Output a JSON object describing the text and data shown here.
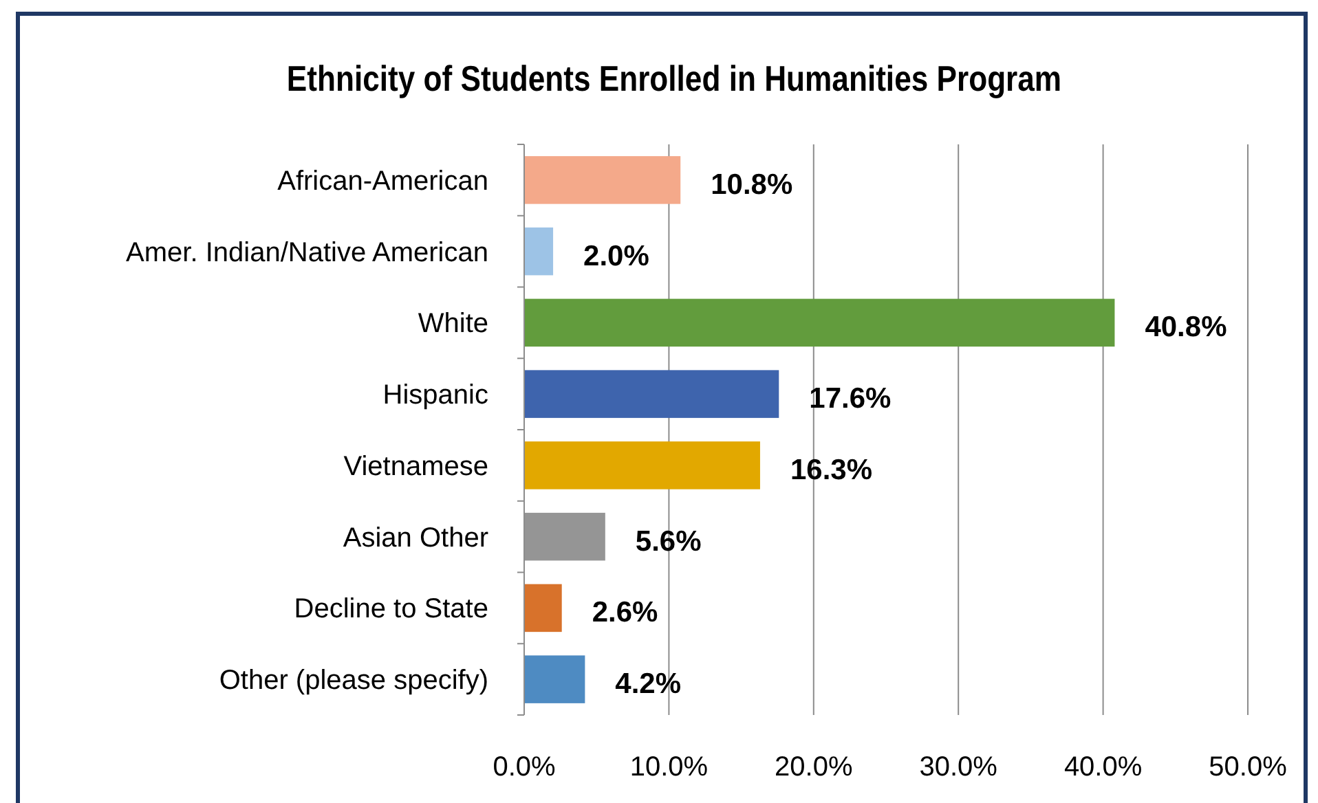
{
  "chart_data": {
    "type": "bar",
    "orientation": "horizontal",
    "title": "Ethnicity of Students Enrolled in Humanities Program",
    "categories": [
      "African-American",
      "Amer. Indian/Native American",
      "White",
      "Hispanic",
      "Vietnamese",
      "Asian Other",
      "Decline to State",
      "Other (please specify)"
    ],
    "values": [
      10.8,
      2.0,
      40.8,
      17.6,
      16.3,
      5.6,
      2.6,
      4.2
    ],
    "colors": [
      "#f4a98a",
      "#9dc3e6",
      "#629c3d",
      "#3e64ad",
      "#e2a800",
      "#959595",
      "#d8722b",
      "#4e8bc2"
    ],
    "value_labels": [
      "10.8%",
      "2.0%",
      "40.8%",
      "17.6%",
      "16.3%",
      "5.6%",
      "2.6%",
      "4.2%"
    ],
    "xlim": [
      0,
      50
    ],
    "xticks": [
      {
        "value": 0,
        "label": "0.0%"
      },
      {
        "value": 10,
        "label": "10.0%"
      },
      {
        "value": 20,
        "label": "20.0%"
      },
      {
        "value": 30,
        "label": "30.0%"
      },
      {
        "value": 40,
        "label": "40.0%"
      },
      {
        "value": 50,
        "label": "50.0%"
      }
    ],
    "grid": "x"
  }
}
